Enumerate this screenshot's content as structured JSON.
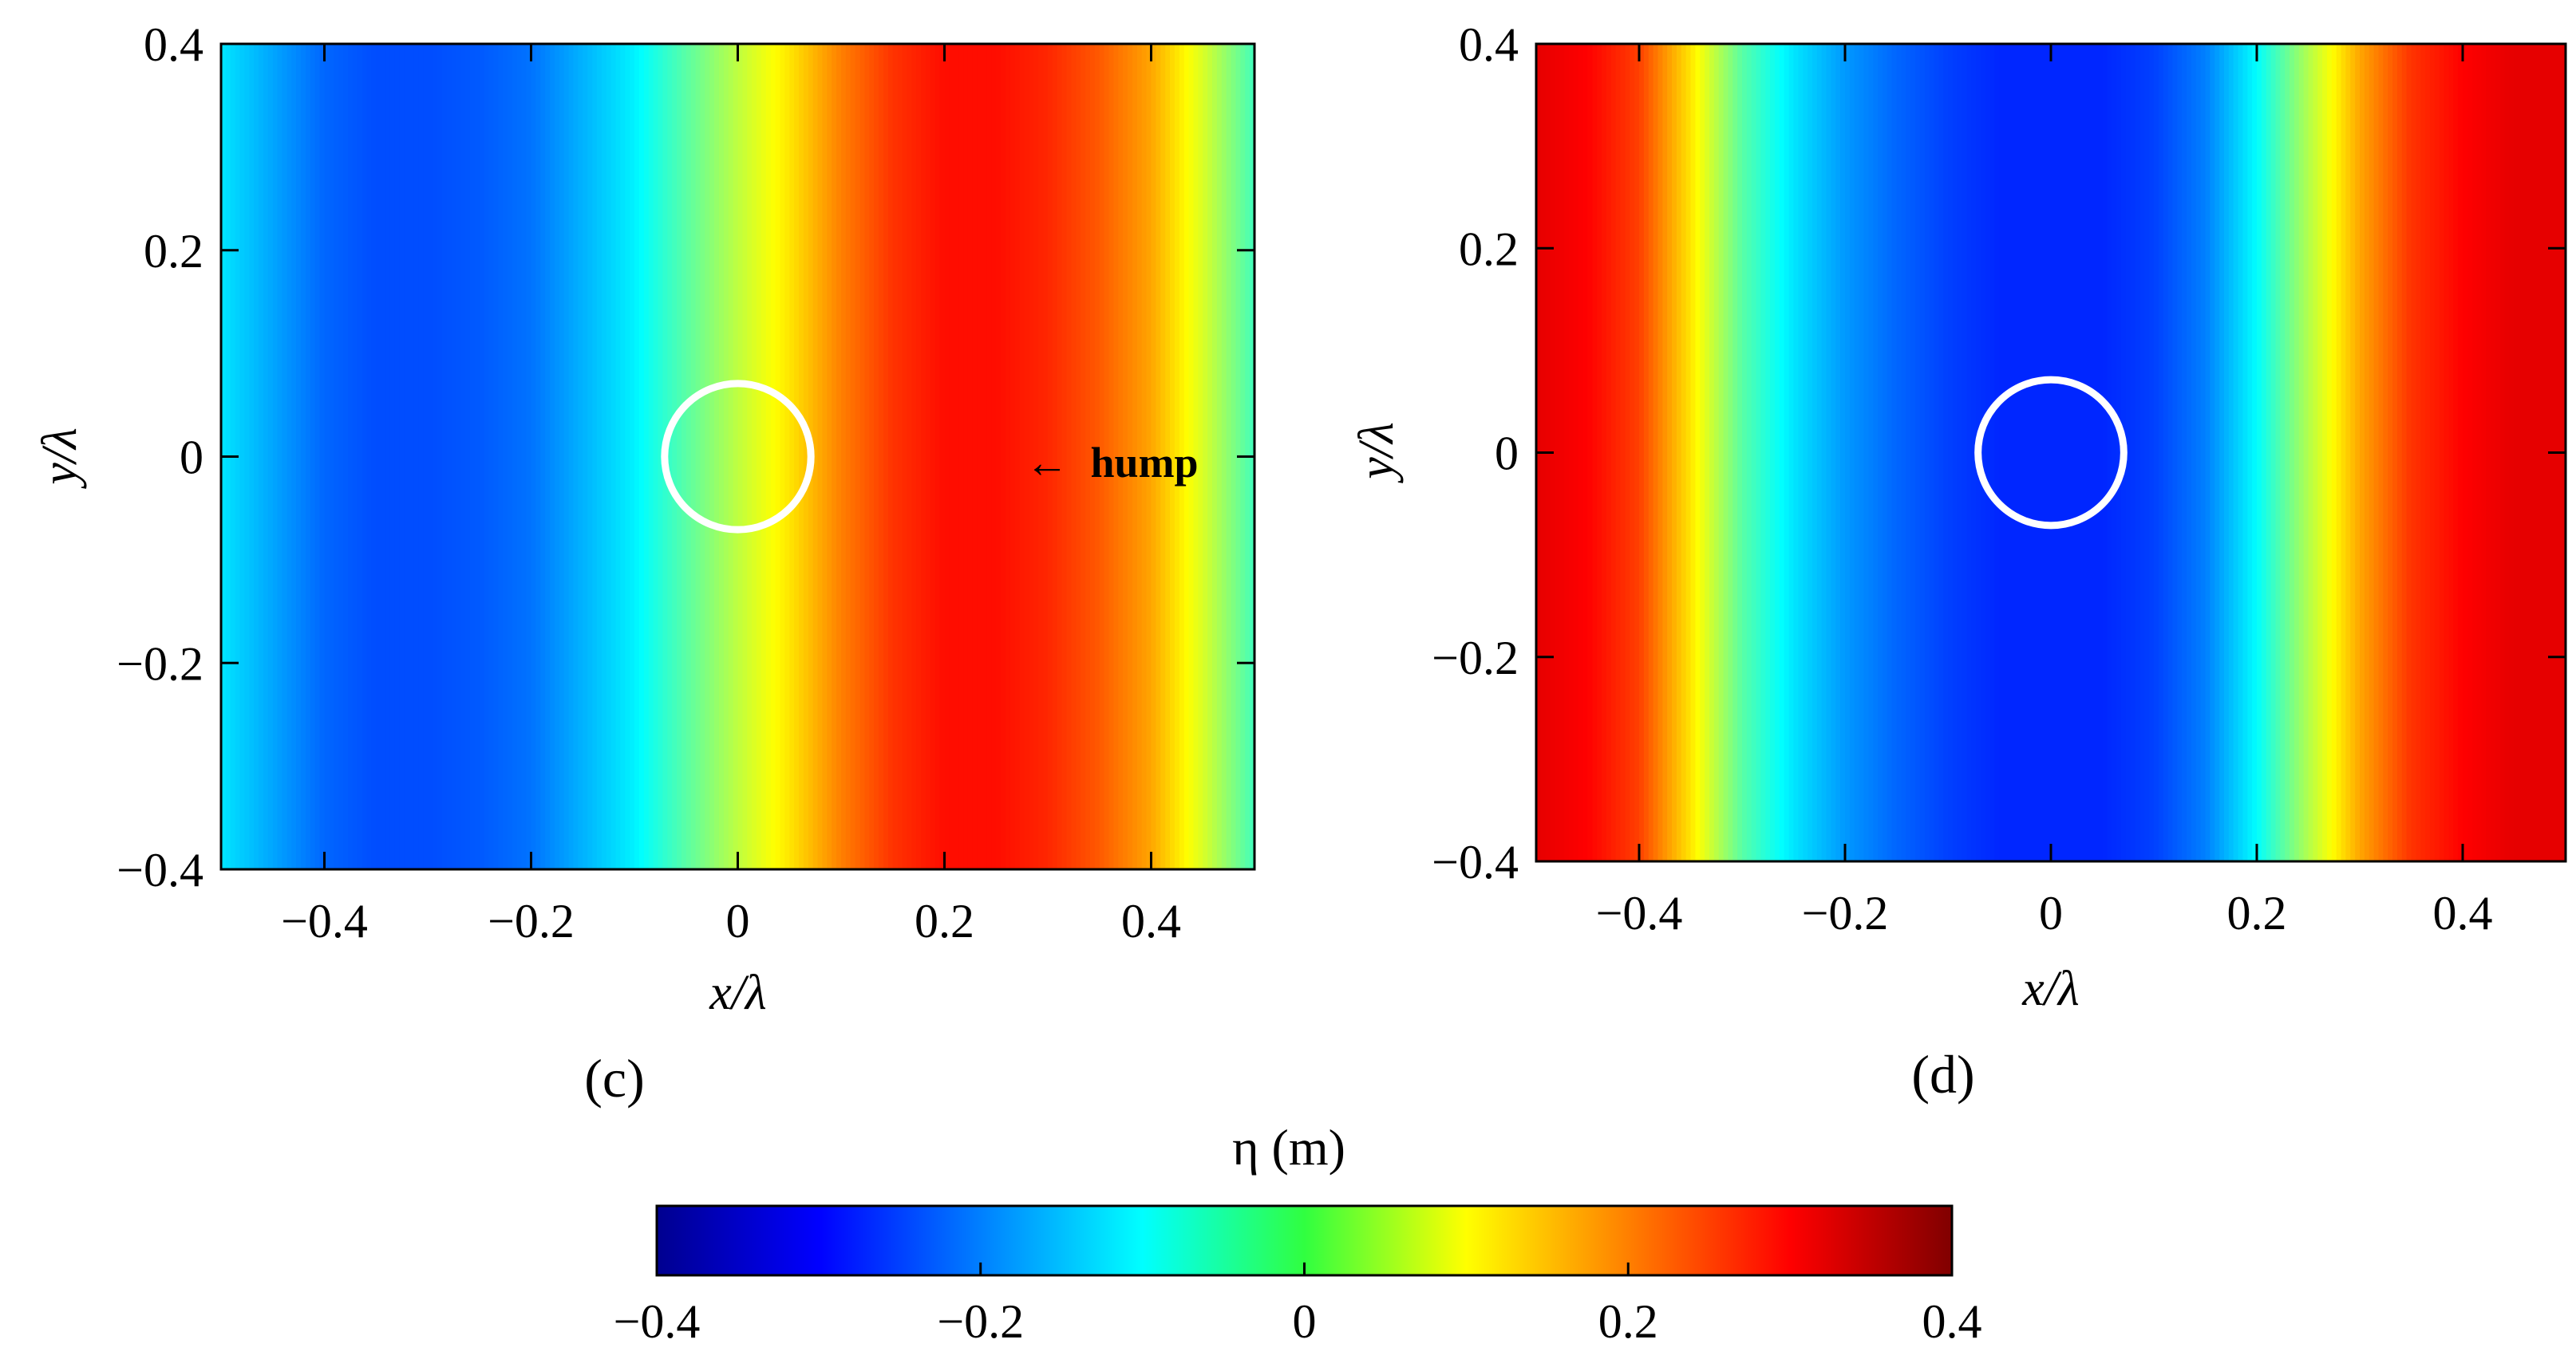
{
  "chart_data": [
    {
      "type": "heatmap",
      "panel_label": "(c)",
      "xlabel": "x/λ",
      "ylabel": "y/λ",
      "xlim": [
        -0.5,
        0.5
      ],
      "ylim": [
        -0.4,
        0.4
      ],
      "xticks": [
        -0.4,
        -0.2,
        0,
        0.2,
        0.4
      ],
      "yticks": [
        -0.4,
        -0.2,
        0,
        0.2,
        0.4
      ],
      "x_tick_labels": [
        "−0.4",
        "−0.2",
        "0",
        "0.2",
        "0.4"
      ],
      "y_tick_labels": [
        "−0.4",
        "−0.2",
        "0",
        "0.2",
        "0.4"
      ],
      "profile_x": [
        -0.5,
        -0.45,
        -0.4,
        -0.35,
        -0.3,
        -0.25,
        -0.2,
        -0.15,
        -0.1,
        -0.05,
        0.0,
        0.05,
        0.1,
        0.15,
        0.2,
        0.25,
        0.3,
        0.35,
        0.4,
        0.45,
        0.5
      ],
      "profile_eta": [
        -0.12,
        -0.17,
        -0.22,
        -0.24,
        -0.24,
        -0.23,
        -0.21,
        -0.16,
        -0.11,
        -0.03,
        0.05,
        0.12,
        0.2,
        0.26,
        0.29,
        0.29,
        0.27,
        0.23,
        0.17,
        0.07,
        -0.05
      ],
      "cylinder": {
        "x": 0,
        "y": 0,
        "r": 0.06,
        "color": "#ffffff"
      },
      "annotation": {
        "text": "hump",
        "arrow": "←",
        "x": 0.28,
        "y": 0
      }
    },
    {
      "type": "heatmap",
      "panel_label": "(d)",
      "xlabel": "x/λ",
      "ylabel": "y/λ",
      "xlim": [
        -0.5,
        0.5
      ],
      "ylim": [
        -0.4,
        0.4
      ],
      "xticks": [
        -0.4,
        -0.2,
        0,
        0.2,
        0.4
      ],
      "yticks": [
        -0.4,
        -0.2,
        0,
        0.2,
        0.4
      ],
      "x_tick_labels": [
        "−0.4",
        "−0.2",
        "0",
        "0.2",
        "0.4"
      ],
      "y_tick_labels": [
        "−0.4",
        "−0.2",
        "0",
        "0.2",
        "0.4"
      ],
      "profile_x": [
        -0.5,
        -0.45,
        -0.4,
        -0.35,
        -0.3,
        -0.25,
        -0.2,
        -0.15,
        -0.1,
        -0.05,
        0.0,
        0.05,
        0.1,
        0.15,
        0.2,
        0.25,
        0.3,
        0.35,
        0.4,
        0.45,
        0.5
      ],
      "profile_eta": [
        0.32,
        0.3,
        0.25,
        0.12,
        -0.03,
        -0.12,
        -0.18,
        -0.22,
        -0.25,
        -0.27,
        -0.27,
        -0.27,
        -0.25,
        -0.2,
        -0.1,
        0.04,
        0.17,
        0.26,
        0.3,
        0.32,
        0.32
      ],
      "cylinder": {
        "x": 0,
        "y": 0,
        "r": 0.06,
        "color": "#ffffff"
      }
    }
  ],
  "colorbar": {
    "title": "η (m)",
    "colormap": "jet",
    "range": [
      -0.4,
      0.4
    ],
    "ticks": [
      -0.4,
      -0.2,
      0,
      0.2,
      0.4
    ],
    "tick_labels": [
      "−0.4",
      "−0.2",
      "0",
      "0.2",
      "0.4"
    ]
  }
}
